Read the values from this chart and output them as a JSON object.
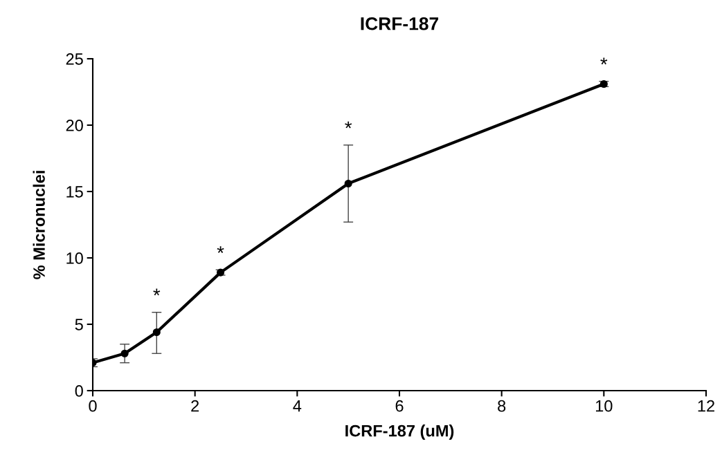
{
  "chart_data": {
    "type": "line",
    "title": "ICRF-187",
    "xlabel": "ICRF-187 (uM)",
    "ylabel": "% Micronuclei",
    "x": [
      0,
      0.625,
      1.25,
      2.5,
      5,
      10
    ],
    "series": [
      {
        "color": "#000000",
        "values": [
          2.1,
          2.8,
          4.4,
          8.9,
          15.6,
          23.1
        ],
        "errors": [
          [
            1.8,
            2.4
          ],
          [
            2.1,
            3.5
          ],
          [
            2.8,
            5.9
          ],
          [
            8.7,
            9.1
          ],
          [
            12.7,
            18.5
          ],
          [
            22.9,
            23.3
          ]
        ]
      }
    ],
    "annotations": [
      {
        "text": "*",
        "x": 1.25,
        "y": 4.4
      },
      {
        "text": "*",
        "x": 2.5,
        "y": 8.9
      },
      {
        "text": "*",
        "x": 5,
        "y": 15.6
      },
      {
        "text": "*",
        "x": 10,
        "y": 23.1
      }
    ],
    "xlim": [
      0,
      12
    ],
    "xticks": [
      0,
      2,
      4,
      6,
      8,
      10,
      12
    ],
    "ylim": [
      0,
      25
    ],
    "yticks": [
      0,
      5,
      10,
      15,
      20,
      25
    ],
    "grid": false,
    "legend": false,
    "marker": "circle",
    "line_style": "solid"
  }
}
